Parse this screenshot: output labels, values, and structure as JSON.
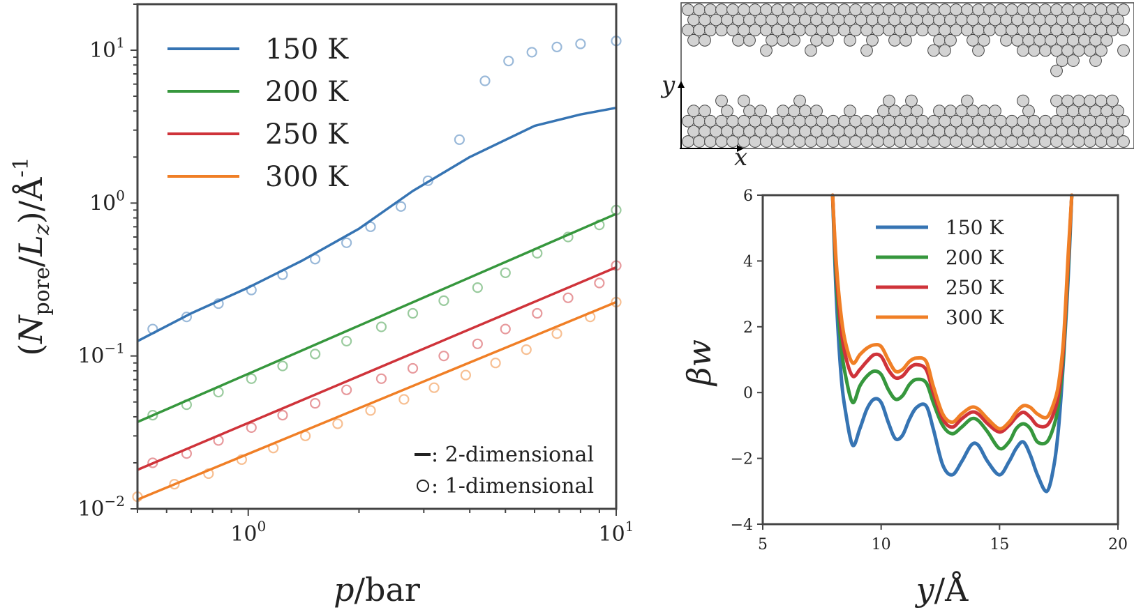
{
  "chart_data": [
    {
      "type": "line",
      "xscale": "log",
      "yscale": "log",
      "xlim": [
        0.5,
        10
      ],
      "ylim": [
        0.01,
        20
      ],
      "xlabel": "p/bar",
      "ylabel": "(N_pore/L_z)/Å^-1",
      "xticks": [
        {
          "value": 1,
          "base": "10",
          "exp": "0"
        },
        {
          "value": 10,
          "base": "10",
          "exp": "1"
        }
      ],
      "yticks": [
        {
          "value": 0.01,
          "base": "10",
          "exp": "−2"
        },
        {
          "value": 0.1,
          "base": "10",
          "exp": "−1"
        },
        {
          "value": 1,
          "base": "10",
          "exp": "0"
        },
        {
          "value": 10,
          "base": "10",
          "exp": "1"
        }
      ],
      "legend": {
        "position": "upper-left"
      },
      "notes": [
        {
          "marker": "line",
          "text": ": 2-dimensional"
        },
        {
          "marker": "circle",
          "text": ": 1-dimensional"
        }
      ],
      "series": [
        {
          "name": "150 K",
          "color": "#3674b3",
          "line": {
            "x": [
              0.5,
              0.7,
              1.0,
              1.4,
              2.0,
              2.8,
              4.0,
              6.0,
              8.0,
              10.0
            ],
            "y": [
              0.125,
              0.19,
              0.28,
              0.42,
              0.68,
              1.2,
              2.0,
              3.2,
              3.8,
              4.2
            ]
          },
          "points": {
            "x": [
              0.55,
              0.68,
              0.83,
              1.02,
              1.24,
              1.52,
              1.85,
              2.15,
              2.6,
              3.08,
              3.75,
              4.4,
              5.1,
              5.9,
              6.9,
              8.0,
              10.0
            ],
            "y": [
              0.15,
              0.18,
              0.22,
              0.27,
              0.34,
              0.43,
              0.55,
              0.7,
              0.95,
              1.4,
              2.6,
              6.3,
              8.5,
              9.7,
              10.5,
              11.0,
              11.5
            ]
          }
        },
        {
          "name": "200 K",
          "color": "#36973d",
          "line": {
            "x": [
              0.5,
              10.0
            ],
            "y": [
              0.037,
              0.85
            ]
          },
          "points": {
            "x": [
              0.55,
              0.68,
              0.83,
              1.02,
              1.24,
              1.52,
              1.85,
              2.3,
              2.8,
              3.4,
              4.2,
              5.0,
              6.1,
              7.4,
              9.0,
              10.0
            ],
            "y": [
              0.041,
              0.048,
              0.058,
              0.071,
              0.086,
              0.103,
              0.125,
              0.155,
              0.19,
              0.23,
              0.28,
              0.35,
              0.47,
              0.6,
              0.72,
              0.9
            ]
          }
        },
        {
          "name": "250 K",
          "color": "#cf333a",
          "line": {
            "x": [
              0.5,
              10.0
            ],
            "y": [
              0.018,
              0.38
            ]
          },
          "points": {
            "x": [
              0.55,
              0.68,
              0.83,
              1.02,
              1.24,
              1.52,
              1.85,
              2.3,
              2.8,
              3.4,
              4.2,
              5.0,
              6.1,
              7.4,
              9.0,
              10.0
            ],
            "y": [
              0.02,
              0.023,
              0.028,
              0.034,
              0.041,
              0.049,
              0.06,
              0.071,
              0.083,
              0.1,
              0.12,
              0.15,
              0.19,
              0.24,
              0.3,
              0.39
            ]
          }
        },
        {
          "name": "300 K",
          "color": "#f07f26",
          "line": {
            "x": [
              0.5,
              10.0
            ],
            "y": [
              0.0115,
              0.225
            ]
          },
          "points": {
            "x": [
              0.5,
              0.63,
              0.78,
              0.96,
              1.17,
              1.43,
              1.75,
              2.15,
              2.65,
              3.2,
              3.9,
              4.7,
              5.7,
              6.9,
              8.5,
              10.0
            ],
            "y": [
              0.012,
              0.0145,
              0.017,
              0.021,
              0.025,
              0.03,
              0.036,
              0.044,
              0.052,
              0.062,
              0.075,
              0.09,
              0.11,
              0.14,
              0.18,
              0.225
            ]
          }
        }
      ]
    },
    {
      "type": "line",
      "xlim": [
        5,
        20
      ],
      "ylim": [
        -4,
        6
      ],
      "xlabel": "y/Å",
      "ylabel": "βw",
      "xticks": [
        5,
        10,
        15,
        20
      ],
      "yticks": [
        {
          "value": -4,
          "label": "−4"
        },
        {
          "value": -2,
          "label": "−2"
        },
        {
          "value": 0,
          "label": "0"
        },
        {
          "value": 2,
          "label": "2"
        },
        {
          "value": 4,
          "label": "4"
        },
        {
          "value": 6,
          "label": "6"
        }
      ],
      "legend": {
        "position": "upper-center"
      },
      "series": [
        {
          "name": "150 K",
          "color": "#3674b3",
          "x": [
            7.95,
            8.1,
            8.3,
            8.5,
            8.8,
            9.1,
            9.4,
            9.7,
            10.0,
            10.3,
            10.6,
            10.9,
            11.2,
            11.5,
            11.9,
            12.2,
            12.6,
            13.0,
            13.4,
            13.8,
            14.1,
            14.5,
            15.0,
            15.4,
            15.7,
            16.0,
            16.3,
            16.6,
            17.0,
            17.3,
            17.5,
            17.7,
            17.9,
            18.05
          ],
          "y": [
            6.0,
            3.0,
            0.6,
            -0.6,
            -1.6,
            -1.1,
            -0.5,
            -0.2,
            -0.3,
            -0.9,
            -1.4,
            -1.3,
            -0.8,
            -0.45,
            -0.4,
            -1.1,
            -2.2,
            -2.5,
            -2.1,
            -1.6,
            -1.6,
            -2.1,
            -2.5,
            -2.1,
            -1.7,
            -1.5,
            -1.9,
            -2.5,
            -3.0,
            -2.2,
            -1.0,
            1.0,
            3.5,
            6.0
          ]
        },
        {
          "name": "200 K",
          "color": "#36973d",
          "x": [
            7.95,
            8.1,
            8.3,
            8.5,
            8.8,
            9.1,
            9.4,
            9.7,
            10.0,
            10.3,
            10.6,
            10.9,
            11.2,
            11.5,
            11.9,
            12.2,
            12.6,
            13.0,
            13.4,
            13.8,
            14.1,
            14.5,
            15.0,
            15.4,
            15.7,
            16.0,
            16.3,
            16.6,
            17.0,
            17.3,
            17.5,
            17.7,
            17.9,
            18.05
          ],
          "y": [
            6.0,
            3.5,
            1.5,
            0.5,
            -0.3,
            0.2,
            0.5,
            0.65,
            0.55,
            0.1,
            -0.2,
            -0.1,
            0.25,
            0.4,
            0.3,
            -0.3,
            -1.0,
            -1.25,
            -1.05,
            -0.8,
            -0.85,
            -1.2,
            -1.7,
            -1.5,
            -1.1,
            -0.95,
            -1.1,
            -1.5,
            -1.5,
            -1.0,
            -0.3,
            1.2,
            3.8,
            6.0
          ]
        },
        {
          "name": "250 K",
          "color": "#cf333a",
          "x": [
            7.95,
            8.1,
            8.3,
            8.5,
            8.8,
            9.1,
            9.4,
            9.7,
            10.0,
            10.3,
            10.6,
            10.9,
            11.2,
            11.5,
            11.9,
            12.2,
            12.6,
            13.0,
            13.4,
            13.8,
            14.1,
            14.5,
            15.0,
            15.4,
            15.7,
            16.0,
            16.3,
            16.6,
            17.0,
            17.3,
            17.5,
            17.7,
            17.9,
            18.05
          ],
          "y": [
            6.0,
            3.8,
            2.0,
            1.1,
            0.5,
            0.7,
            0.95,
            1.15,
            1.1,
            0.7,
            0.45,
            0.5,
            0.75,
            0.85,
            0.7,
            0.0,
            -0.8,
            -1.05,
            -0.8,
            -0.6,
            -0.65,
            -0.95,
            -1.2,
            -1.0,
            -0.75,
            -0.6,
            -0.75,
            -1.0,
            -1.0,
            -0.6,
            0.0,
            1.4,
            4.0,
            6.0
          ]
        },
        {
          "name": "300 K",
          "color": "#f07f26",
          "x": [
            7.95,
            8.1,
            8.3,
            8.5,
            8.8,
            9.1,
            9.4,
            9.7,
            10.0,
            10.3,
            10.6,
            10.9,
            11.2,
            11.5,
            11.9,
            12.2,
            12.6,
            13.0,
            13.4,
            13.8,
            14.1,
            14.5,
            15.0,
            15.4,
            15.7,
            16.0,
            16.3,
            16.6,
            17.0,
            17.3,
            17.5,
            17.7,
            17.9,
            18.05
          ],
          "y": [
            6.0,
            4.0,
            2.4,
            1.5,
            0.9,
            1.15,
            1.35,
            1.45,
            1.4,
            1.0,
            0.65,
            0.7,
            0.95,
            1.05,
            0.95,
            0.2,
            -0.65,
            -0.9,
            -0.65,
            -0.45,
            -0.5,
            -0.8,
            -1.1,
            -0.9,
            -0.6,
            -0.4,
            -0.45,
            -0.65,
            -0.75,
            -0.3,
            0.3,
            1.6,
            4.2,
            6.0
          ]
        }
      ]
    }
  ],
  "schematic": {
    "axis_y": "y",
    "axis_x": "x",
    "atom_color": "#d3d3d3",
    "atom_outline": "#444444"
  }
}
